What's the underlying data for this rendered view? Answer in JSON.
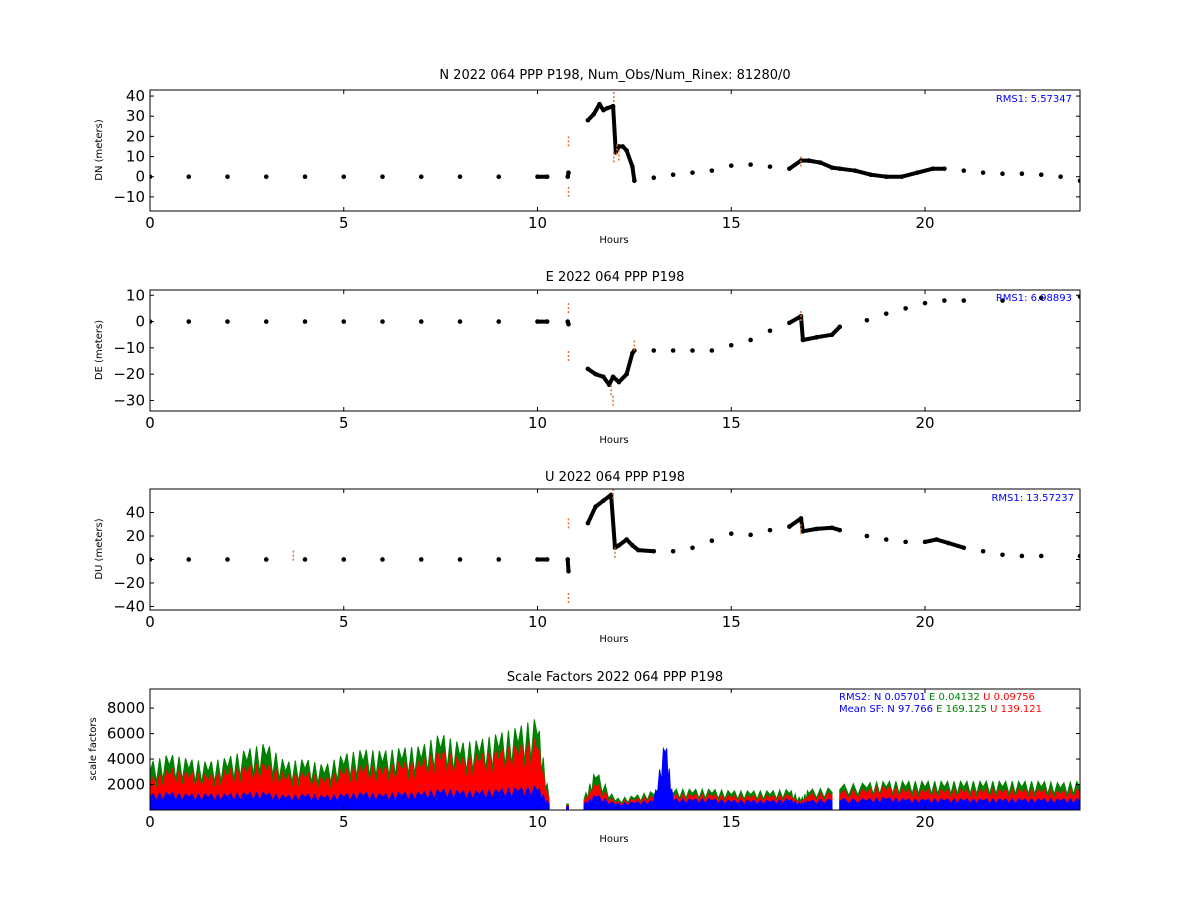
{
  "colors": {
    "black": "#000000",
    "orange": "#e07030",
    "blue": "#0000ff",
    "green": "#008000",
    "red": "#ff0000"
  },
  "chart_data": [
    {
      "type": "scatter",
      "title": "N 2022 064 PPP  P198, Num_Obs/Num_Rinex: 81280/0",
      "xlabel": "Hours",
      "ylabel": "DN (meters)",
      "xlim": [
        0,
        24
      ],
      "ylim": [
        -17,
        43
      ],
      "xticks": [
        "0",
        "5",
        "10",
        "15",
        "20"
      ],
      "yticks": [
        "40",
        "30",
        "20",
        "10",
        "0",
        "−10"
      ],
      "rms_text": "RMS1:  5.57347",
      "series": [
        {
          "color": "black",
          "x": [
            0,
            1,
            2,
            3,
            4,
            5,
            6,
            7,
            8,
            9,
            10,
            10.25,
            10.78,
            10.8,
            11.3,
            11.45,
            11.6,
            11.7,
            11.8,
            11.95,
            12.02,
            12.1,
            12.2,
            12.3,
            12.45,
            12.5,
            13,
            13.5,
            14,
            14.5,
            15,
            15.5,
            16,
            16.5,
            16.8,
            17,
            17.3,
            17.6,
            17.8,
            18.2,
            18.6,
            19,
            19.4,
            19.8,
            20.2,
            20.5,
            21,
            21.5,
            22,
            22.5,
            23,
            23.5,
            24
          ],
          "y": [
            0,
            0,
            0,
            0,
            0,
            0,
            0,
            0,
            0,
            0,
            0,
            0,
            0,
            2,
            28,
            31,
            36,
            33,
            34,
            35,
            12,
            15,
            15,
            13,
            5,
            -2,
            -0.5,
            1,
            2,
            3,
            5.5,
            6,
            5,
            4,
            8,
            8,
            7,
            4.5,
            4,
            3,
            1,
            0,
            0,
            2,
            4,
            4,
            3,
            2,
            1.5,
            1.5,
            1,
            0,
            -2
          ]
        },
        {
          "color": "orange",
          "x": [
            10.8,
            10.8,
            11.97,
            11.97,
            12.05,
            12.1,
            16.8
          ],
          "y": [
            20,
            -10,
            42,
            12,
            16,
            13,
            10
          ]
        }
      ]
    },
    {
      "type": "scatter",
      "title": "E 2022 064 PPP  P198",
      "xlabel": "Hours",
      "ylabel": "DE (meters)",
      "xlim": [
        0,
        24
      ],
      "ylim": [
        -34,
        12
      ],
      "xticks": [
        "0",
        "5",
        "10",
        "15",
        "20"
      ],
      "yticks": [
        "10",
        "0",
        "−10",
        "−20",
        "−30"
      ],
      "rms_text": "RMS1:  6.98893",
      "series": [
        {
          "color": "black",
          "x": [
            0,
            1,
            2,
            3,
            4,
            5,
            6,
            7,
            8,
            9,
            10,
            10.25,
            10.78,
            10.8,
            11.3,
            11.5,
            11.7,
            11.85,
            11.95,
            12.1,
            12.3,
            12.45,
            12.5,
            13,
            13.5,
            14,
            14.5,
            15,
            15.5,
            16,
            16.5,
            16.8,
            16.85,
            17.2,
            17.6,
            17.8,
            18.5,
            19,
            19.5,
            20,
            20.5,
            21,
            22,
            23,
            24
          ],
          "y": [
            0,
            0,
            0,
            0,
            0,
            0,
            0,
            0,
            0,
            0,
            0,
            0,
            0,
            -1,
            -18,
            -20,
            -21,
            -24,
            -21,
            -23,
            -20,
            -12,
            -11,
            -11,
            -11,
            -11,
            -11,
            -9,
            -7,
            -3.5,
            -0.5,
            2,
            -7,
            -6,
            -5,
            -2,
            0.5,
            3,
            5,
            7,
            8,
            8,
            8,
            9,
            9.5
          ]
        },
        {
          "color": "orange",
          "x": [
            10.8,
            10.8,
            11.9,
            11.95,
            12.5,
            16.8
          ],
          "y": [
            7,
            -15,
            -28,
            -32,
            -11,
            4
          ]
        }
      ]
    },
    {
      "type": "scatter",
      "title": "U 2022 064 PPP  P198",
      "xlabel": "Hours",
      "ylabel": "DU (meters)",
      "xlim": [
        0,
        24
      ],
      "ylim": [
        -43,
        60
      ],
      "xticks": [
        "0",
        "5",
        "10",
        "15",
        "20"
      ],
      "yticks": [
        "40",
        "20",
        "0",
        "−20",
        "−40"
      ],
      "rms_text": "RMS1: 13.57237",
      "series": [
        {
          "color": "black",
          "x": [
            0,
            1,
            2,
            3,
            4,
            5,
            6,
            7,
            8,
            9,
            10,
            10.25,
            10.78,
            10.8,
            11.3,
            11.5,
            11.7,
            11.9,
            12.0,
            12.1,
            12.3,
            12.45,
            12.6,
            13,
            13.5,
            14,
            14.5,
            15,
            15.5,
            16,
            16.5,
            16.8,
            16.85,
            17.2,
            17.6,
            17.8,
            18.5,
            19,
            19.5,
            20,
            20.3,
            20.6,
            21,
            21.5,
            22,
            22.5,
            23,
            24
          ],
          "y": [
            0,
            0,
            0,
            0,
            0,
            0,
            0,
            0,
            0,
            0,
            0,
            0,
            0,
            -10,
            31,
            45,
            50,
            55,
            10,
            12,
            17,
            12,
            8,
            7,
            7,
            10,
            16,
            22,
            21,
            25,
            28,
            35,
            24,
            26,
            27,
            25,
            20,
            17,
            15,
            15,
            17,
            14,
            10,
            7,
            4,
            3,
            3,
            3
          ]
        },
        {
          "color": "orange",
          "x": [
            10.8,
            10.8,
            11.95,
            12.0,
            16.8,
            3.7
          ],
          "y": [
            35,
            -37,
            60,
            10,
            30,
            -1
          ]
        }
      ]
    },
    {
      "type": "scatter",
      "title": "Scale Factors 2022 064 PPP  P198",
      "xlabel": "Hours",
      "ylabel": "scale factors",
      "xlim": [
        0,
        24
      ],
      "ylim": [
        0,
        9500
      ],
      "xticks": [
        "0",
        "5",
        "10",
        "15",
        "20"
      ],
      "yticks": [
        "8000",
        "6000",
        "4000",
        "2000"
      ],
      "legend_lines": [
        [
          {
            "text": "RMS2: N  0.05701",
            "color": "blue"
          },
          {
            "text": "E  0.04132",
            "color": "green"
          },
          {
            "text": "U  0.09756",
            "color": "red"
          }
        ],
        [
          {
            "text": "Mean SF: N  97.766",
            "color": "blue"
          },
          {
            "text": "E 169.125",
            "color": "green"
          },
          {
            "text": "U  139.121",
            "color": "red"
          }
        ]
      ],
      "series": [
        {
          "color": "green",
          "x": [
            0,
            0.5,
            1,
            1.5,
            2,
            2.5,
            3,
            3.5,
            4,
            4.5,
            5,
            5.5,
            6,
            6.5,
            7,
            7.5,
            8,
            8.5,
            9,
            9.5,
            10,
            10.3,
            null,
            10.75,
            10.8,
            null,
            11.2,
            11.5,
            12,
            12.5,
            13,
            13.5,
            14,
            14.5,
            15,
            15.5,
            16,
            16.5,
            16.8,
            17,
            17.6,
            null,
            17.8,
            18.5,
            19,
            19.5,
            20,
            20.5,
            21,
            21.5,
            22,
            22.5,
            23,
            23.5,
            24
          ],
          "y": [
            3000,
            3500,
            3200,
            3000,
            3300,
            3800,
            4200,
            3000,
            3200,
            2800,
            3500,
            3800,
            3700,
            3900,
            4000,
            4800,
            4200,
            4400,
            4800,
            5200,
            5800,
            800,
            null,
            400,
            400,
            null,
            800,
            2500,
            700,
            900,
            1200,
            1300,
            1300,
            1300,
            1200,
            1200,
            1200,
            1300,
            700,
            1300,
            1400,
            null,
            1600,
            1700,
            1800,
            1800,
            1800,
            1800,
            1800,
            1800,
            1800,
            1800,
            1800,
            1700,
            1800
          ]
        },
        {
          "color": "red",
          "x": [
            0,
            0.5,
            1,
            1.5,
            2,
            2.5,
            3,
            3.5,
            4,
            4.5,
            5,
            5.5,
            6,
            6.5,
            7,
            7.5,
            8,
            8.5,
            9,
            9.5,
            10,
            10.3,
            null,
            10.75,
            10.8,
            null,
            11.2,
            11.5,
            12,
            12.5,
            13,
            13.5,
            14,
            14.5,
            15,
            15.5,
            16,
            16.5,
            16.8,
            17,
            17.6,
            null,
            17.8,
            18.5,
            19,
            19.5,
            20,
            20.5,
            21,
            21.5,
            22,
            22.5,
            23,
            23.5,
            24
          ],
          "y": [
            2000,
            2600,
            2400,
            2200,
            2500,
            2800,
            3000,
            2200,
            2400,
            2000,
            2600,
            2800,
            2700,
            3000,
            3100,
            3800,
            3300,
            3500,
            3800,
            4100,
            4500,
            600,
            null,
            300,
            300,
            null,
            600,
            1800,
            500,
            700,
            900,
            1000,
            1000,
            1000,
            900,
            900,
            900,
            1000,
            500,
            1000,
            1100,
            null,
            1200,
            1300,
            1500,
            1300,
            1300,
            1300,
            1300,
            1300,
            1300,
            1300,
            1300,
            1200,
            1300
          ]
        },
        {
          "color": "blue",
          "x": [
            0,
            0.5,
            1,
            1.5,
            2,
            2.5,
            3,
            3.5,
            4,
            4.5,
            5,
            5.5,
            6,
            6.5,
            7,
            7.5,
            8,
            8.5,
            9,
            9.5,
            10,
            10.3,
            null,
            10.75,
            10.8,
            null,
            11.2,
            11.5,
            12,
            12.5,
            13,
            13.3,
            13.5,
            14,
            14.5,
            15,
            15.5,
            16,
            16.5,
            16.8,
            17,
            17.6,
            null,
            17.8,
            18.5,
            19,
            19.5,
            20,
            20.5,
            21,
            21.5,
            22,
            22.5,
            23,
            23.5,
            24
          ],
          "y": [
            1000,
            1100,
            1000,
            1000,
            1000,
            1100,
            1100,
            900,
            1000,
            900,
            1000,
            1100,
            1000,
            1100,
            1100,
            1300,
            1200,
            1200,
            1300,
            1400,
            1500,
            400,
            null,
            200,
            200,
            null,
            400,
            1000,
            400,
            500,
            600,
            4500,
            700,
            700,
            700,
            600,
            600,
            600,
            700,
            400,
            600,
            700,
            null,
            700,
            700,
            800,
            700,
            700,
            700,
            700,
            700,
            700,
            700,
            700,
            700,
            700
          ]
        }
      ]
    }
  ]
}
